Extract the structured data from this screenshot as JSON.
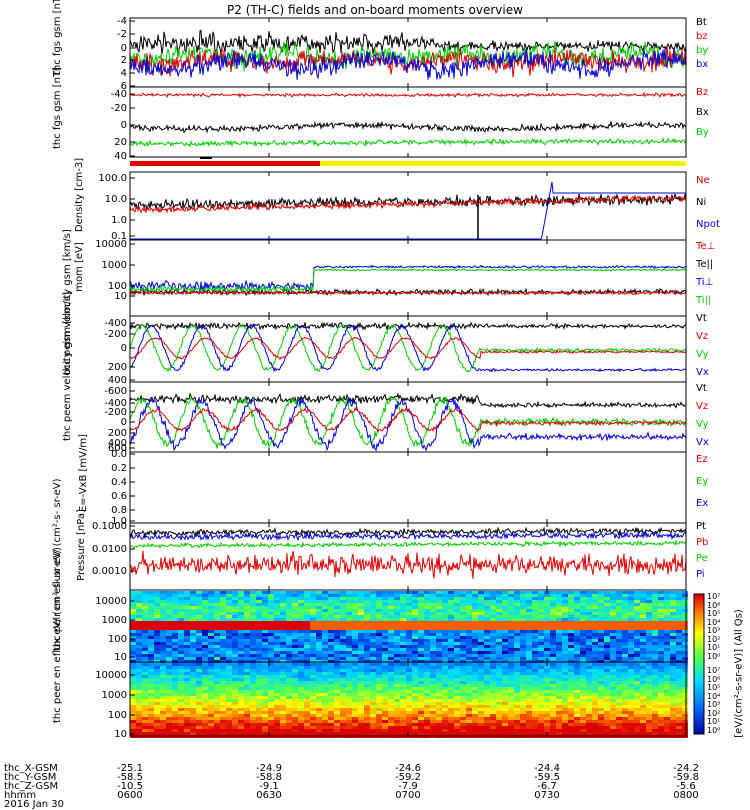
{
  "title": "P2 (TH-C) fields and on-board moments overview",
  "colors": {
    "black": "#000000",
    "red": "#e00000",
    "green": "#00cc00",
    "blue": "#0000dd",
    "yellow": "#ffee00"
  },
  "panels": [
    {
      "id": "fgs-gsm",
      "ylabel": [
        "thc",
        "fgs",
        "gsm",
        "[nT]"
      ],
      "ylim": [
        -4,
        6
      ],
      "ticks": [
        -4,
        -2,
        0,
        2,
        4,
        6
      ],
      "legend": [
        [
          "Bt",
          "black"
        ],
        [
          "bz",
          "red"
        ],
        [
          "by",
          "green"
        ],
        [
          "bx",
          "blue"
        ]
      ]
    },
    {
      "id": "fgs-dsl",
      "ylabel": [
        "thc",
        "fgs",
        "gsm",
        "[nT]"
      ],
      "ylim": [
        -55,
        40
      ],
      "ticks": [
        -40,
        -20,
        0,
        20,
        40
      ],
      "legend": [
        [
          "Bz",
          "red"
        ],
        [
          "Bx",
          "black"
        ],
        [
          "By",
          "green"
        ]
      ]
    },
    {
      "id": "density",
      "ylabel": [
        "Density",
        "[cm-3]"
      ],
      "ylim": [
        0.05,
        200
      ],
      "log": true,
      "ticks": [
        "100.0",
        "10.0",
        "1.0",
        "0.1"
      ],
      "legend": [
        [
          "Ne",
          "red"
        ],
        [
          "Ni",
          "black"
        ],
        [
          "Npot",
          "blue"
        ]
      ]
    },
    {
      "id": "temp",
      "ylabel": [
        "mom",
        "[eV]"
      ],
      "ylim": [
        3,
        20000
      ],
      "log": true,
      "ticks": [
        "10000",
        "1000",
        "100",
        "10"
      ],
      "legend": [
        [
          "Te⊥",
          "red"
        ],
        [
          "Te||",
          "black"
        ],
        [
          "Ti⊥",
          "blue"
        ],
        [
          "Ti||",
          "green"
        ]
      ]
    },
    {
      "id": "peim",
      "ylabel": [
        "thc",
        "peim",
        "velocity",
        "gsm",
        "[km/s]"
      ],
      "ylim": [
        -450,
        450
      ],
      "ticks": [
        -400,
        -200,
        0,
        200,
        400
      ],
      "legend": [
        [
          "Vt",
          "black"
        ],
        [
          "Vz",
          "red"
        ],
        [
          "Vy",
          "green"
        ],
        [
          "Vx",
          "blue"
        ]
      ]
    },
    {
      "id": "peem",
      "ylabel": [
        "thc",
        "peem",
        "velocity",
        "gsm",
        "[km/s]"
      ],
      "ylim": [
        -700,
        700
      ],
      "ticks": [
        -600,
        -400,
        -200,
        0,
        200,
        400,
        600
      ],
      "legend": [
        [
          "Vt",
          "black"
        ],
        [
          "Vz",
          "red"
        ],
        [
          "Vy",
          "green"
        ],
        [
          "Vx",
          "blue"
        ]
      ]
    },
    {
      "id": "efield",
      "ylabel": [
        "E=-VxB",
        "[mV/m]"
      ],
      "ylim": [
        0,
        1
      ],
      "ticks": [
        "0.0",
        "0.2",
        "0.4",
        "0.6",
        "0.8",
        "1.0"
      ],
      "legend": [
        [
          "Ez",
          "red"
        ],
        [
          "Ey",
          "green"
        ],
        [
          "Ex",
          "blue"
        ]
      ]
    },
    {
      "id": "pressure",
      "ylabel": [
        "Pressure",
        "[nPa]"
      ],
      "ylim": [
        0.0003,
        0.15
      ],
      "log": true,
      "ticks": [
        "0.1000",
        "0.0100",
        "0.0010"
      ],
      "legend": [
        [
          "Pt",
          "black"
        ],
        [
          "Pb",
          "red"
        ],
        [
          "Pe",
          "green"
        ],
        [
          "Pi",
          "blue"
        ]
      ]
    },
    {
      "id": "peir",
      "ylabel": [
        "thc",
        "peir",
        "en",
        "eflux",
        "eV/",
        "(cm²-s-",
        "sr-eV)"
      ],
      "ticks": [
        "10000",
        "1000",
        "100",
        "10"
      ]
    },
    {
      "id": "peer",
      "ylabel": [
        "thc",
        "peer",
        "en",
        "eflux",
        "eV/",
        "(cm²-s-",
        "sr-eV)"
      ],
      "ticks": [
        "10000",
        "1000",
        "100",
        "10"
      ]
    }
  ],
  "colorbar": {
    "label": "[eV/(cm²-s-sr-eV)] (All Qs)",
    "ticks": [
      "10⁷",
      "10⁶",
      "10⁵",
      "10⁴",
      "10³",
      "10²",
      "10¹",
      "10⁰"
    ],
    "ticks2": [
      "10⁷",
      "10⁶",
      "10⁵",
      "10⁴",
      "10³",
      "10²",
      "10¹",
      "10⁰"
    ]
  },
  "ephemeris": {
    "labels": [
      "thc_X-GSM",
      "thc_Y-GSM",
      "thc_Z-GSM",
      "hhmm",
      "2016 Jan 30"
    ],
    "columns": [
      [
        "-25.1",
        "-58.5",
        "-10.5",
        "0600"
      ],
      [
        "-24.9",
        "-58.8",
        "-9.1",
        "0630"
      ],
      [
        "-24.6",
        "-59.2",
        "-7.9",
        "0700"
      ],
      [
        "-24.4",
        "-59.5",
        "-6.7",
        "0730"
      ],
      [
        "-24.2",
        "-59.8",
        "-5.6",
        "0800"
      ]
    ]
  },
  "chart_data": {
    "type": "line",
    "title": "P2 (TH-C) fields and on-board moments overview",
    "x": [
      "0600",
      "0630",
      "0700",
      "0730",
      "0800"
    ],
    "series": [
      {
        "name": "Bt",
        "panel": "fgs-gsm",
        "approx_level": 3
      },
      {
        "name": "Bz",
        "panel": "fgs-dsl",
        "approx_level": 35
      },
      {
        "name": "Bx",
        "panel": "fgs-dsl",
        "approx_level": -5
      },
      {
        "name": "By",
        "panel": "fgs-dsl",
        "approx_level": -20
      },
      {
        "name": "Ni",
        "panel": "density",
        "approx_level": 8
      },
      {
        "name": "Vt",
        "panel": "peim",
        "approx_level": 300
      }
    ],
    "xlabel": "hhmm",
    "grid": false
  }
}
